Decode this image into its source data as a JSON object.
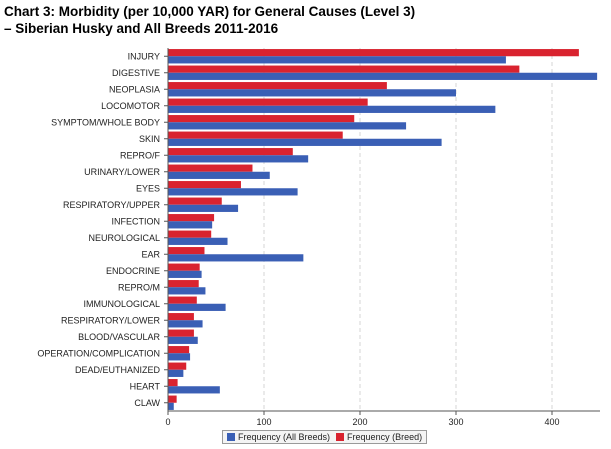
{
  "title_line1": "Chart 3: Morbidity (per 10,000 YAR) for General Causes (Level 3)",
  "title_line2": "–  Siberian Husky and All Breeds 2011-2016",
  "colors": {
    "all_breeds": "#3a5fb5",
    "breed": "#d9232f",
    "grid": "#d4d4d4",
    "axis": "#555555"
  },
  "chart_data": {
    "type": "bar",
    "orientation": "horizontal",
    "title": "Chart 3: Morbidity (per 10,000 YAR) for General Causes (Level 3) – Siberian Husky and All Breeds 2011-2016",
    "xlabel": "",
    "ylabel": "",
    "xlim": [
      0,
      450
    ],
    "xticks": [
      0,
      100,
      200,
      300,
      400
    ],
    "grid": true,
    "legend_position": "bottom-center",
    "categories": [
      "INJURY",
      "DIGESTIVE",
      "NEOPLASIA",
      "LOCOMOTOR",
      "SYMPTOM/WHOLE BODY",
      "SKIN",
      "REPRO/F",
      "URINARY/LOWER",
      "EYES",
      "RESPIRATORY/UPPER",
      "INFECTION",
      "NEUROLOGICAL",
      "EAR",
      "ENDOCRINE",
      "REPRO/M",
      "IMMUNOLOGICAL",
      "RESPIRATORY/LOWER",
      "BLOOD/VASCULAR",
      "OPERATION/COMPLICATION",
      "DEAD/EUTHANIZED",
      "HEART",
      "CLAW"
    ],
    "series": [
      {
        "name": "Frequency (Breed)",
        "color": "#d9232f",
        "values": [
          428,
          366,
          228,
          208,
          194,
          182,
          130,
          88,
          76,
          56,
          48,
          45,
          38,
          33,
          32,
          30,
          27,
          27,
          22,
          19,
          10,
          9
        ]
      },
      {
        "name": "Frequency (All Breeds)",
        "color": "#3a5fb5",
        "values": [
          352,
          447,
          300,
          341,
          248,
          285,
          146,
          106,
          135,
          73,
          46,
          62,
          141,
          35,
          39,
          60,
          36,
          31,
          23,
          16,
          54,
          6
        ]
      }
    ],
    "legend": [
      "Frequency (All Breeds)",
      "Frequency (Breed)"
    ]
  }
}
